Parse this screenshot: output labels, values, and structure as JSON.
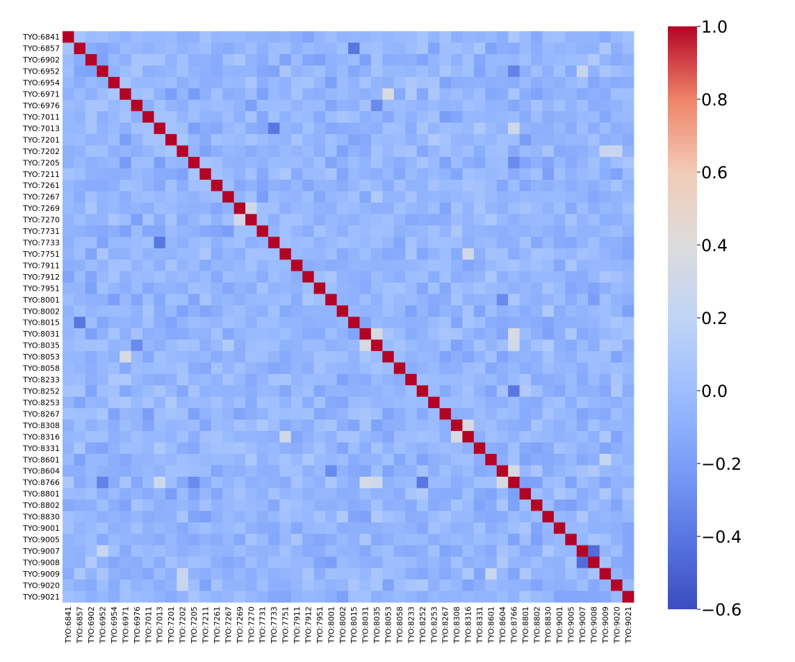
{
  "chart_data": {
    "type": "heatmap",
    "title": "",
    "xlabel": "",
    "ylabel": "",
    "labels": [
      "TYO:6841",
      "TYO:6857",
      "TYO:6902",
      "TYO:6952",
      "TYO:6954",
      "TYO:6971",
      "TYO:6976",
      "TYO:7011",
      "TYO:7013",
      "TYO:7201",
      "TYO:7202",
      "TYO:7205",
      "TYO:7211",
      "TYO:7261",
      "TYO:7267",
      "TYO:7269",
      "TYO:7270",
      "TYO:7731",
      "TYO:7733",
      "TYO:7751",
      "TYO:7911",
      "TYO:7912",
      "TYO:7951",
      "TYO:8001",
      "TYO:8002",
      "TYO:8015",
      "TYO:8031",
      "TYO:8035",
      "TYO:8053",
      "TYO:8058",
      "TYO:8233",
      "TYO:8252",
      "TYO:8253",
      "TYO:8267",
      "TYO:8308",
      "TYO:8316",
      "TYO:8331",
      "TYO:8601",
      "TYO:8604",
      "TYO:8766",
      "TYO:8801",
      "TYO:8802",
      "TYO:8830",
      "TYO:9001",
      "TYO:9005",
      "TYO:9007",
      "TYO:9008",
      "TYO:9009",
      "TYO:9020",
      "TYO:9021"
    ],
    "diagonal_value": 1.0,
    "off_diagonal_typical_value": -0.05,
    "notable_correlations": [
      {
        "row": "TYO:7270",
        "col": "TYO:7269",
        "value": 0.3
      },
      {
        "row": "TYO:8035",
        "col": "TYO:8031",
        "value": 0.35
      },
      {
        "row": "TYO:8316",
        "col": "TYO:8308",
        "value": 0.35
      },
      {
        "row": "TYO:8766",
        "col": "TYO:8604",
        "value": 0.35
      },
      {
        "row": "TYO:8053",
        "col": "TYO:6971",
        "value": 0.35
      },
      {
        "row": "TYO:8766",
        "col": "TYO:8031",
        "value": 0.35
      },
      {
        "row": "TYO:8766",
        "col": "TYO:8035",
        "value": 0.3
      },
      {
        "row": "TYO:8766",
        "col": "TYO:7013",
        "value": 0.3
      },
      {
        "row": "TYO:7751",
        "col": "TYO:8316",
        "value": 0.3
      },
      {
        "row": "TYO:9020",
        "col": "TYO:7202",
        "value": 0.25
      },
      {
        "row": "TYO:7202",
        "col": "TYO:9009",
        "value": 0.25
      },
      {
        "row": "TYO:8601",
        "col": "TYO:9009",
        "value": 0.25
      },
      {
        "row": "TYO:9007",
        "col": "TYO:6952",
        "value": 0.25
      },
      {
        "row": "TYO:8001",
        "col": "TYO:9008",
        "value": -0.2
      },
      {
        "row": "TYO:9008",
        "col": "TYO:9007",
        "value": -0.45
      },
      {
        "row": "TYO:8766",
        "col": "TYO:8252",
        "value": -0.4
      },
      {
        "row": "TYO:8252",
        "col": "TYO:8766",
        "value": -0.4
      },
      {
        "row": "TYO:7733",
        "col": "TYO:7013",
        "value": -0.4
      },
      {
        "row": "TYO:8015",
        "col": "TYO:6857",
        "value": -0.4
      },
      {
        "row": "TYO:8001",
        "col": "TYO:8604",
        "value": -0.3
      },
      {
        "row": "TYO:8766",
        "col": "TYO:7205",
        "value": -0.3
      },
      {
        "row": "TYO:6952",
        "col": "TYO:8766",
        "value": -0.35
      },
      {
        "row": "TYO:6976",
        "col": "TYO:8035",
        "value": -0.3
      }
    ],
    "colorbar": {
      "colormap": "coolwarm",
      "vmin": -0.6,
      "vmax": 1.0,
      "ticks": [
        1.0,
        0.8,
        0.6,
        0.4,
        0.2,
        0.0,
        -0.2,
        -0.4,
        -0.6
      ],
      "tick_labels": [
        "1.0",
        "0.8",
        "0.6",
        "0.4",
        "0.2",
        "0.0",
        "−0.2",
        "−0.4",
        "−0.6"
      ]
    }
  }
}
